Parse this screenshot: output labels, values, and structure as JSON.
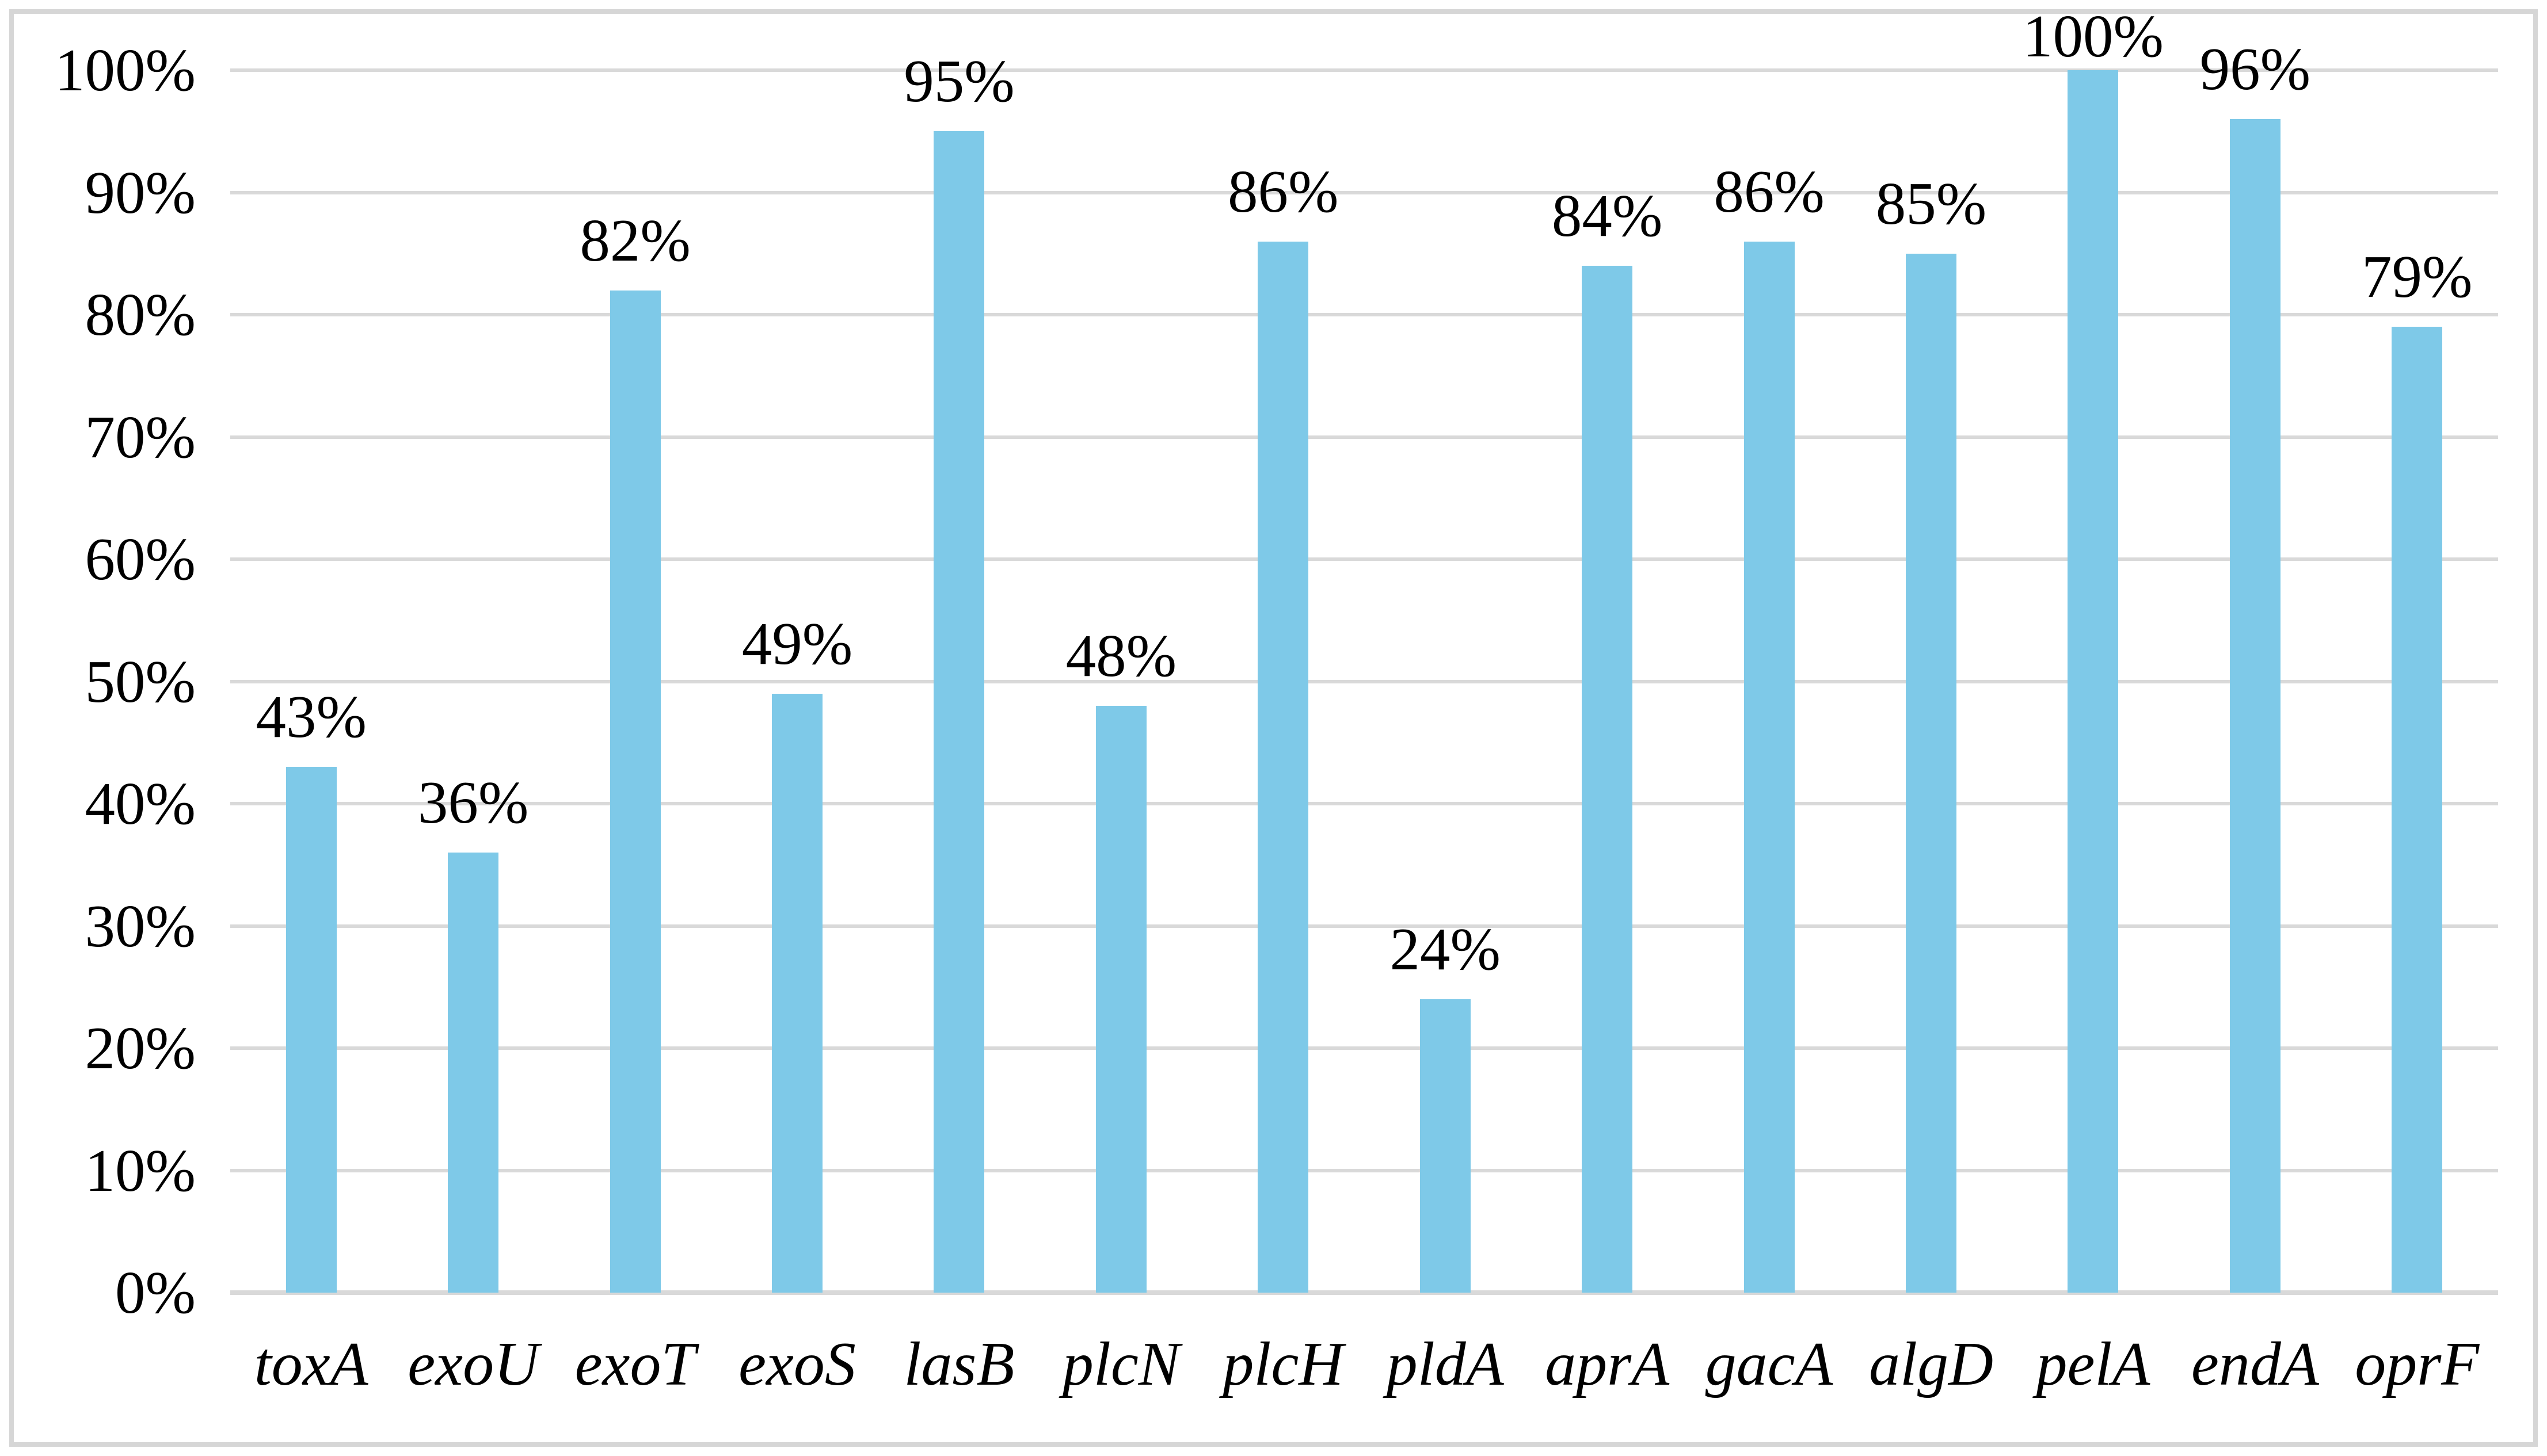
{
  "chart_data": {
    "type": "bar",
    "title": "",
    "xlabel": "",
    "ylabel": "",
    "categories": [
      "toxA",
      "exoU",
      "exoT",
      "exoS",
      "lasB",
      "plcN",
      "plcH",
      "pldA",
      "aprA",
      "gacA",
      "algD",
      "pelA",
      "endA",
      "oprF"
    ],
    "values": [
      43,
      36,
      82,
      49,
      95,
      48,
      86,
      24,
      84,
      86,
      85,
      100,
      96,
      79
    ],
    "value_labels": [
      "43%",
      "36%",
      "82%",
      "49%",
      "95%",
      "48%",
      "86%",
      "24%",
      "84%",
      "86%",
      "85%",
      "100%",
      "96%",
      "79%"
    ],
    "y_ticks": [
      0,
      10,
      20,
      30,
      40,
      50,
      60,
      70,
      80,
      90,
      100
    ],
    "y_tick_labels": [
      "0%",
      "10%",
      "20%",
      "30%",
      "40%",
      "50%",
      "60%",
      "70%",
      "80%",
      "90%",
      "100%"
    ],
    "ylim": [
      0,
      100
    ],
    "grid": "horizontal",
    "legend": false,
    "colors": {
      "bar_fill": "#7EC9E8",
      "gridline": "#D9D9D9",
      "chart_border": "#D6D6D6",
      "text": "#000000",
      "background": "#FFFFFF"
    }
  }
}
